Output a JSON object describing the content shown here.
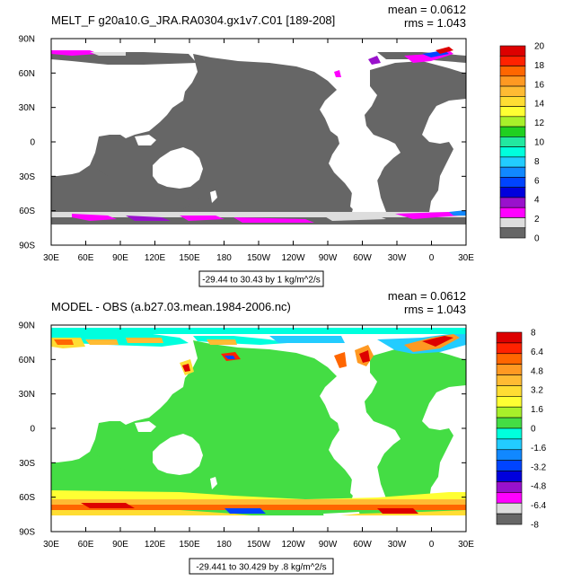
{
  "chart_data": [
    {
      "type": "heatmap",
      "title": "MELT_F g20a10.G_JRA.RA0304.gx1v7.C01 [189-208]",
      "stats": {
        "mean": "mean = 0.0612",
        "rms": "rms = 1.043"
      },
      "range_note": "-29.44 to 30.43 by 1 kg/m^2/s",
      "x_ticks": [
        "30E",
        "60E",
        "90E",
        "120E",
        "150E",
        "180",
        "150W",
        "120W",
        "90W",
        "60W",
        "30W",
        "0",
        "30E"
      ],
      "y_ticks": [
        "90N",
        "60N",
        "30N",
        "0",
        "30S",
        "60S",
        "90S"
      ],
      "xlim": [
        30,
        390
      ],
      "ylim": [
        -90,
        90
      ],
      "colorbar": {
        "labels": [
          "20",
          "18",
          "16",
          "14",
          "12",
          "10",
          "8",
          "6",
          "4",
          "2",
          "0"
        ],
        "colors": [
          "#dd0000",
          "#ff2200",
          "#ff6600",
          "#ff9922",
          "#ffbb33",
          "#ffdd33",
          "#ffff33",
          "#a8f02a",
          "#20d020",
          "#22e8a0",
          "#00ffdd",
          "#22ccff",
          "#1188ff",
          "#0044ff",
          "#0000dd",
          "#9911cc",
          "#ff00ff",
          "#dddddd",
          "#666666"
        ]
      }
    },
    {
      "type": "heatmap",
      "title": "MODEL - OBS (a.b27.03.mean.1984-2006.nc)",
      "stats": {
        "mean": "mean = 0.0612",
        "rms": "rms = 1.043"
      },
      "range_note": "-29.441 to 30.429 by .8 kg/m^2/s",
      "x_ticks": [
        "30E",
        "60E",
        "90E",
        "120E",
        "150E",
        "180",
        "150W",
        "120W",
        "90W",
        "60W",
        "30W",
        "0",
        "30E"
      ],
      "y_ticks": [
        "90N",
        "60N",
        "30N",
        "0",
        "30S",
        "60S",
        "90S"
      ],
      "xlim": [
        30,
        390
      ],
      "ylim": [
        -90,
        90
      ],
      "colorbar": {
        "labels": [
          "8",
          "6.4",
          "4.8",
          "3.2",
          "1.6",
          "0",
          "-1.6",
          "-3.2",
          "-4.8",
          "-6.4",
          "-8"
        ],
        "colors": [
          "#dd0000",
          "#ff2200",
          "#ff6600",
          "#ff9922",
          "#ffbb33",
          "#ffdd33",
          "#ffff33",
          "#a8f02a",
          "#44dd44",
          "#00ffdd",
          "#22ccff",
          "#1188ff",
          "#0044ff",
          "#0000dd",
          "#9911cc",
          "#ff00ff",
          "#dddddd",
          "#666666"
        ]
      }
    }
  ]
}
